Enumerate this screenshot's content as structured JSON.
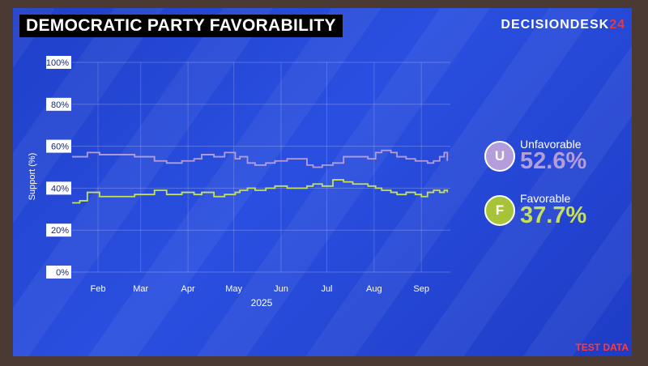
{
  "title": "DEMOCRATIC PARTY FAVORABILITY",
  "brand": {
    "part1": "DECISION",
    "part2": "DESK",
    "part3": "24"
  },
  "footer": "TEST DATA",
  "colors": {
    "unfavorable": "#b39ddb",
    "favorable": "#c6e05a"
  },
  "legend": [
    {
      "letter": "U",
      "label": "Unfavorable",
      "value": "52.6%"
    },
    {
      "letter": "F",
      "label": "Favorable",
      "value": "37.7%"
    }
  ],
  "chart_data": {
    "type": "line",
    "xlabel": "2025",
    "ylabel": "Support (%)",
    "ylim": [
      0,
      100
    ],
    "yticks": [
      "0%",
      "20%",
      "40%",
      "60%",
      "80%",
      "100%"
    ],
    "xlim": [
      "2025-01-15",
      "2025-09-20"
    ],
    "xticks": [
      {
        "date": "2025-02-01",
        "label": "Feb"
      },
      {
        "date": "2025-03-01",
        "label": "Mar"
      },
      {
        "date": "2025-04-01",
        "label": "Apr"
      },
      {
        "date": "2025-05-01",
        "label": "May"
      },
      {
        "date": "2025-06-01",
        "label": "Jun"
      },
      {
        "date": "2025-07-01",
        "label": "Jul"
      },
      {
        "date": "2025-08-01",
        "label": "Aug"
      },
      {
        "date": "2025-09-01",
        "label": "Sep"
      }
    ],
    "grid": true,
    "series": [
      {
        "name": "Unfavorable",
        "x": [
          "2025-01-15",
          "2025-01-20",
          "2025-01-25",
          "2025-02-02",
          "2025-02-15",
          "2025-02-25",
          "2025-03-10",
          "2025-03-18",
          "2025-03-28",
          "2025-04-05",
          "2025-04-10",
          "2025-04-18",
          "2025-04-25",
          "2025-05-02",
          "2025-05-05",
          "2025-05-10",
          "2025-05-15",
          "2025-05-22",
          "2025-05-28",
          "2025-06-05",
          "2025-06-12",
          "2025-06-18",
          "2025-06-22",
          "2025-06-28",
          "2025-07-05",
          "2025-07-12",
          "2025-07-18",
          "2025-07-25",
          "2025-07-28",
          "2025-08-02",
          "2025-08-06",
          "2025-08-12",
          "2025-08-16",
          "2025-08-22",
          "2025-08-28",
          "2025-09-01",
          "2025-09-05",
          "2025-09-09",
          "2025-09-13",
          "2025-09-16",
          "2025-09-18"
        ],
        "values": [
          55,
          55,
          57,
          56,
          56,
          55,
          53,
          52,
          53,
          54,
          56,
          55,
          57,
          54,
          55,
          52,
          51,
          52,
          53,
          54,
          54,
          51,
          50,
          51,
          52,
          55,
          55,
          55,
          54,
          57,
          58,
          57,
          55,
          54,
          53,
          53,
          52,
          53,
          55,
          57,
          53
        ]
      },
      {
        "name": "Favorable",
        "x": [
          "2025-01-15",
          "2025-01-20",
          "2025-01-25",
          "2025-02-02",
          "2025-02-15",
          "2025-02-25",
          "2025-03-10",
          "2025-03-18",
          "2025-03-28",
          "2025-04-05",
          "2025-04-10",
          "2025-04-18",
          "2025-04-25",
          "2025-05-02",
          "2025-05-05",
          "2025-05-10",
          "2025-05-15",
          "2025-05-22",
          "2025-05-28",
          "2025-06-05",
          "2025-06-12",
          "2025-06-18",
          "2025-06-22",
          "2025-06-28",
          "2025-07-05",
          "2025-07-12",
          "2025-07-18",
          "2025-07-25",
          "2025-07-28",
          "2025-08-02",
          "2025-08-06",
          "2025-08-12",
          "2025-08-16",
          "2025-08-22",
          "2025-08-28",
          "2025-09-01",
          "2025-09-05",
          "2025-09-09",
          "2025-09-13",
          "2025-09-16",
          "2025-09-18"
        ],
        "values": [
          33,
          34,
          38,
          36,
          36,
          37,
          39,
          37,
          38,
          37,
          38,
          36,
          37,
          38,
          39,
          40,
          39,
          40,
          41,
          40,
          40,
          41,
          42,
          41,
          44,
          43,
          42,
          42,
          41,
          40,
          39,
          38,
          37,
          38,
          37,
          36,
          38,
          39,
          38,
          39,
          38
        ]
      }
    ]
  }
}
